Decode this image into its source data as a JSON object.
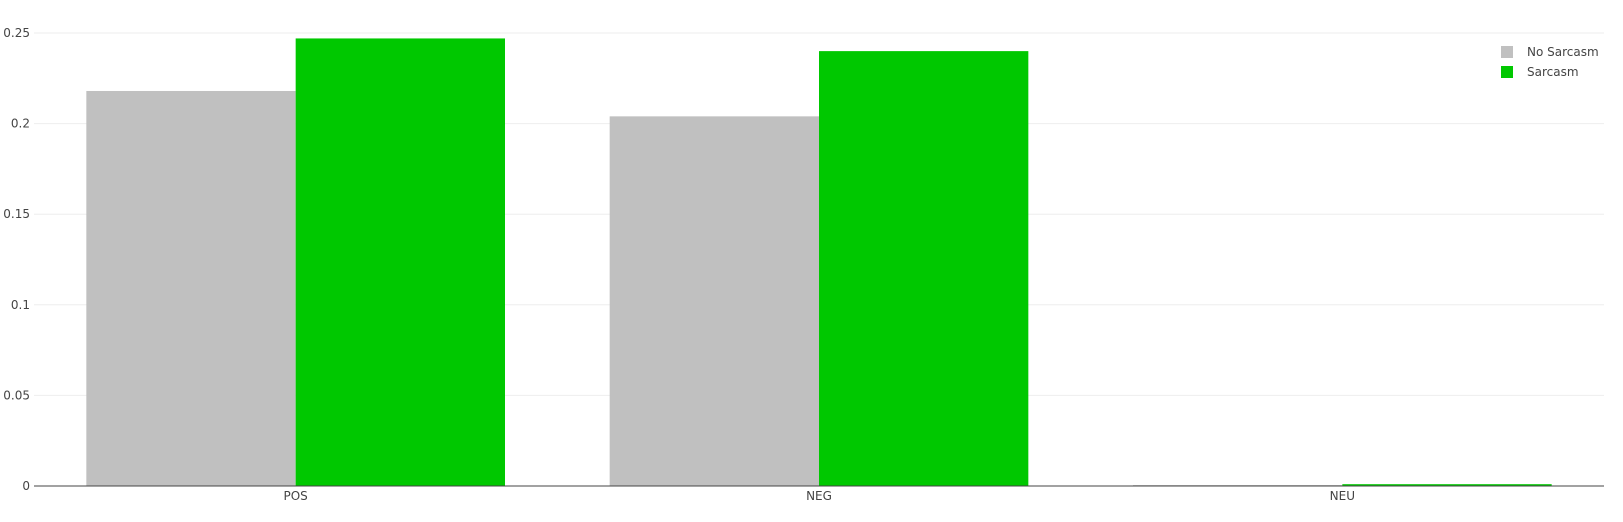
{
  "chart_data": {
    "type": "bar",
    "categories": [
      "POS",
      "NEG",
      "NEU"
    ],
    "series": [
      {
        "name": "No Sarcasm",
        "color": "#c0c0c0",
        "values": [
          0.218,
          0.204,
          0.0005
        ]
      },
      {
        "name": "Sarcasm",
        "color": "#00c800",
        "values": [
          0.247,
          0.24,
          0.001
        ]
      }
    ],
    "title": "",
    "xlabel": "",
    "ylabel": "",
    "ylim": [
      0,
      0.25
    ],
    "yticks": [
      0,
      0.05,
      0.1,
      0.15,
      0.2,
      0.25
    ],
    "ytick_labels": [
      "0",
      "0.05",
      "0.1",
      "0.15",
      "0.2",
      "0.25"
    ],
    "grid": true,
    "legend_position": "top-right"
  }
}
